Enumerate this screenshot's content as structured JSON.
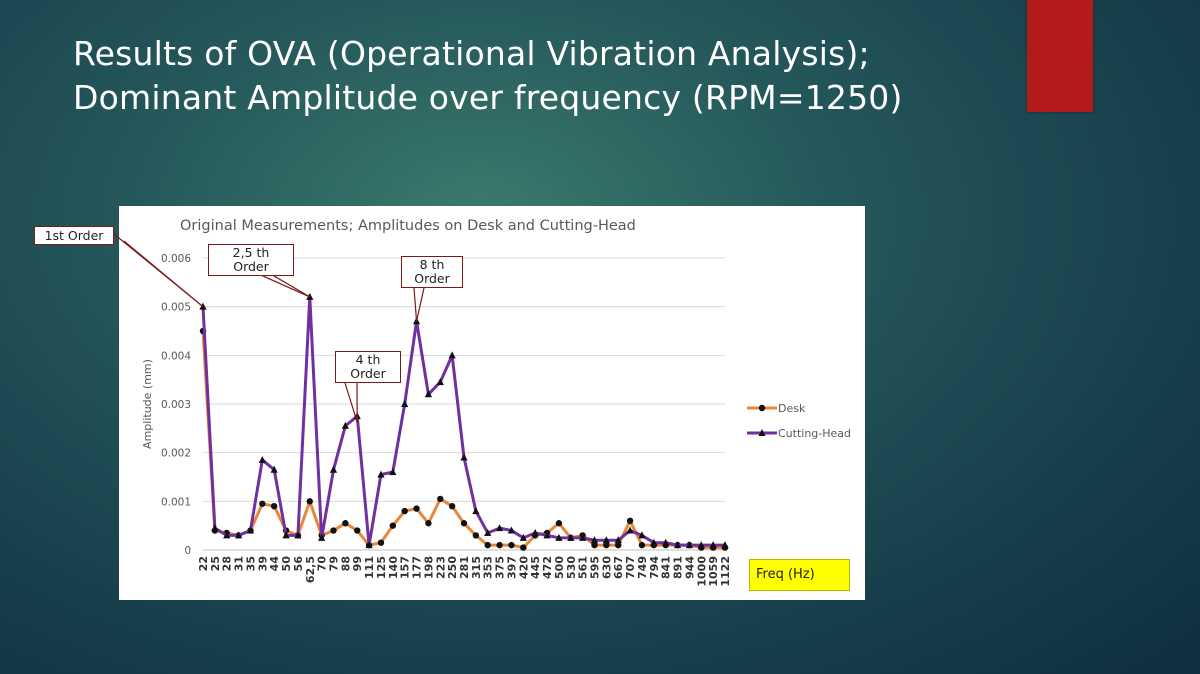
{
  "slide": {
    "title_line1": "Results of OVA (Operational Vibration Analysis);",
    "title_line2": "Dominant Amplitude over frequency (RPM=1250)"
  },
  "colors": {
    "accent_bar": "#b31b1b",
    "desk_line": "#e8873a",
    "cutting_head_line": "#7030a0",
    "freq_box": "#ffff00"
  },
  "annotations": {
    "first_order": "1st Order",
    "order_2_5": [
      "2,5 th",
      "Order"
    ],
    "order_4": [
      "4 th",
      "Order"
    ],
    "order_8": [
      "8 th",
      "Order"
    ],
    "freq_label": "Freq (Hz)"
  },
  "chart_data": {
    "type": "line",
    "title": "Original Measurements; Amplitudes on Desk and Cutting-Head",
    "xlabel": "",
    "ylabel": "Amplitude (mm)",
    "ylim": [
      0,
      0.006
    ],
    "yticks": [
      "0",
      "0.001",
      "0.002",
      "0.003",
      "0.004",
      "0.005",
      "0.006"
    ],
    "grid": true,
    "legend_position": "right",
    "categories": [
      "22",
      "25",
      "28",
      "31",
      "35",
      "39",
      "44",
      "50",
      "56",
      "62,5",
      "70",
      "79",
      "88",
      "99",
      "111",
      "125",
      "140",
      "157",
      "177",
      "198",
      "223",
      "250",
      "281",
      "315",
      "353",
      "375",
      "397",
      "420",
      "445",
      "472",
      "500",
      "530",
      "561",
      "595",
      "630",
      "667",
      "707",
      "749",
      "794",
      "841",
      "891",
      "944",
      "1000",
      "1059",
      "1122"
    ],
    "series": [
      {
        "name": "Desk",
        "color": "#e8873a",
        "marker": "circle",
        "values": [
          0.0045,
          0.0004,
          0.00035,
          0.0003,
          0.0004,
          0.00095,
          0.0009,
          0.0004,
          0.0003,
          0.001,
          0.0003,
          0.0004,
          0.00055,
          0.0004,
          0.0001,
          0.00015,
          0.0005,
          0.0008,
          0.00085,
          0.00055,
          0.00105,
          0.0009,
          0.00055,
          0.0003,
          0.0001,
          0.0001,
          0.0001,
          5e-05,
          0.0003,
          0.00035,
          0.00055,
          0.00025,
          0.0003,
          0.0001,
          0.0001,
          0.0001,
          0.0006,
          0.0001,
          0.0001,
          0.0001,
          0.0001,
          0.0001,
          5e-05,
          5e-05,
          5e-05
        ]
      },
      {
        "name": "Cutting-Head",
        "color": "#7030a0",
        "marker": "triangle",
        "values": [
          0.005,
          0.00045,
          0.0003,
          0.0003,
          0.0004,
          0.00185,
          0.00165,
          0.0003,
          0.0003,
          0.0052,
          0.00025,
          0.00165,
          0.00255,
          0.00275,
          0.0001,
          0.00155,
          0.0016,
          0.003,
          0.0047,
          0.0032,
          0.00345,
          0.004,
          0.0019,
          0.0008,
          0.00035,
          0.00045,
          0.0004,
          0.00025,
          0.00035,
          0.0003,
          0.00025,
          0.00025,
          0.00025,
          0.0002,
          0.0002,
          0.0002,
          0.0004,
          0.0003,
          0.00015,
          0.00015,
          0.0001,
          0.0001,
          0.0001,
          0.0001,
          0.0001
        ]
      }
    ]
  }
}
